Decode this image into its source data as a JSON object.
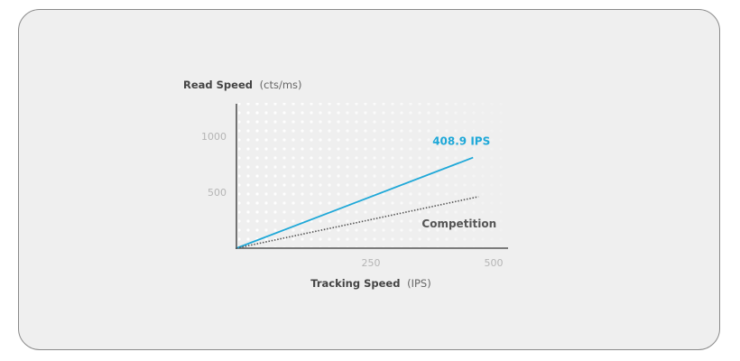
{
  "chart_data": {
    "type": "line",
    "title": "",
    "ylabel": {
      "main": "Read Speed",
      "unit": "(cts/ms)"
    },
    "xlabel": {
      "main": "Tracking Speed",
      "unit": "(IPS)"
    },
    "xlim": [
      0,
      500
    ],
    "ylim": [
      0,
      1250
    ],
    "x_ticks": [
      {
        "value": 250,
        "label": "250"
      },
      {
        "value": 500,
        "label": "500"
      }
    ],
    "y_ticks": [
      {
        "value": 500,
        "label": "500"
      },
      {
        "value": 1000,
        "label": "1000"
      }
    ],
    "series": [
      {
        "name": "408.9 IPS",
        "color": "#1fa8d8",
        "style": "solid",
        "x": [
          0,
          440
        ],
        "y": [
          0,
          810
        ]
      },
      {
        "name": "Competition",
        "color": "#555555",
        "style": "dotted",
        "x": [
          0,
          450
        ],
        "y": [
          0,
          460
        ]
      }
    ],
    "background_pattern": "dot-grid",
    "legend": "inline labels"
  },
  "colors": {
    "card_background": "#efefef",
    "card_border": "#8a8a8a",
    "axis": "#555555",
    "tick_label": "#b5b5b5",
    "axis_title": "#444444"
  }
}
